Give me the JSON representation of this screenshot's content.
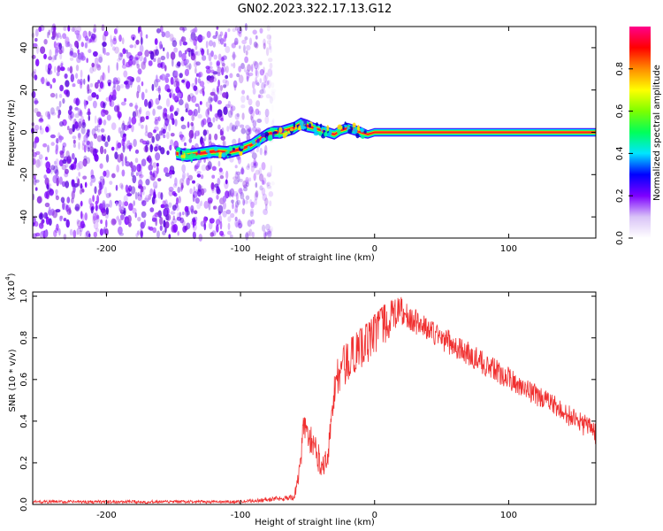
{
  "figure_title": "GN02.2023.322.17.13.G12",
  "chart_data": [
    {
      "type": "heatmap",
      "xlabel": "Height of straight line (km)",
      "ylabel": "Frequency (Hz)",
      "xlim": [
        -255,
        165
      ],
      "ylim": [
        -50,
        50
      ],
      "x_ticks": [
        -200,
        -100,
        0,
        100
      ],
      "y_ticks": [
        -40,
        -20,
        0,
        20,
        40
      ],
      "colorbar": {
        "label": "Normalized spectral amplitude",
        "range": [
          0.0,
          1.0
        ],
        "ticks": [
          0.0,
          0.2,
          0.4,
          0.6,
          0.8
        ],
        "tick_labels": [
          "0.0",
          "0.2",
          "0.4",
          "0.6",
          "0.8"
        ],
        "colors": [
          "#ffffff",
          "#d9c3f7",
          "#7d00ff",
          "#0000ff",
          "#00e5ff",
          "#00ff5a",
          "#7dff00",
          "#ffff00",
          "#ff8c00",
          "#ff0000",
          "#ff008c"
        ]
      },
      "noise_region_x": [
        -255,
        -82
      ],
      "noise_fade_x": [
        -82,
        -75
      ],
      "ridge": {
        "x": [
          -148,
          -140,
          -130,
          -120,
          -110,
          -100,
          -92,
          -85,
          -80,
          -75,
          -70,
          -65,
          -60,
          -55,
          -50,
          -45,
          -40,
          -35,
          -30,
          -25,
          -20,
          -15,
          -10,
          -5,
          0,
          165
        ],
        "frequency": [
          -10,
          -11,
          -10,
          -9,
          -9.5,
          -8,
          -6,
          -3,
          -1,
          0,
          0,
          1,
          2,
          4,
          3,
          2,
          1,
          0,
          -1,
          1,
          2,
          1,
          0,
          -1,
          0,
          0
        ],
        "half_width": [
          3,
          3,
          3,
          3,
          3,
          3,
          3,
          3,
          3,
          3,
          3,
          3,
          3,
          3,
          3,
          2.5,
          2.5,
          2.5,
          2.5,
          2.5,
          2.5,
          2.5,
          2.5,
          2,
          2,
          2
        ]
      }
    },
    {
      "type": "line",
      "xlabel": "Height of straight line (km)",
      "ylabel": "SNR (10 * v/v)",
      "y_scale_note": "(x10",
      "y_scale_exp": "4",
      "y_scale_close": ")",
      "xlim": [
        -255,
        165
      ],
      "ylim": [
        0.0,
        1.02
      ],
      "x_ticks": [
        -200,
        -100,
        0,
        100
      ],
      "y_ticks": [
        0.0,
        0.2,
        0.4,
        0.6,
        0.8,
        1.0
      ],
      "y_tick_labels": [
        "0.0",
        "0.2",
        "0.4",
        "0.6",
        "0.8",
        "1.0"
      ],
      "series": [
        {
          "name": "SNR",
          "color": "#f03030",
          "envelope_x": [
            -255,
            -120,
            -100,
            -85,
            -60,
            -56,
            -53,
            -50,
            -45,
            -42,
            -38,
            -35,
            -30,
            -25,
            -15,
            -5,
            5,
            15,
            20,
            25,
            35,
            60,
            100,
            130,
            165
          ],
          "envelope_lo": [
            0.005,
            0.005,
            0.005,
            0.01,
            0.02,
            0.1,
            0.3,
            0.28,
            0.2,
            0.15,
            0.13,
            0.18,
            0.45,
            0.55,
            0.62,
            0.68,
            0.75,
            0.83,
            0.86,
            0.84,
            0.8,
            0.7,
            0.55,
            0.44,
            0.29
          ],
          "envelope_hi": [
            0.02,
            0.02,
            0.02,
            0.03,
            0.05,
            0.2,
            0.45,
            0.41,
            0.34,
            0.3,
            0.26,
            0.28,
            0.66,
            0.75,
            0.82,
            0.88,
            0.95,
            0.99,
            1.0,
            0.96,
            0.92,
            0.82,
            0.66,
            0.54,
            0.4
          ]
        }
      ]
    }
  ]
}
